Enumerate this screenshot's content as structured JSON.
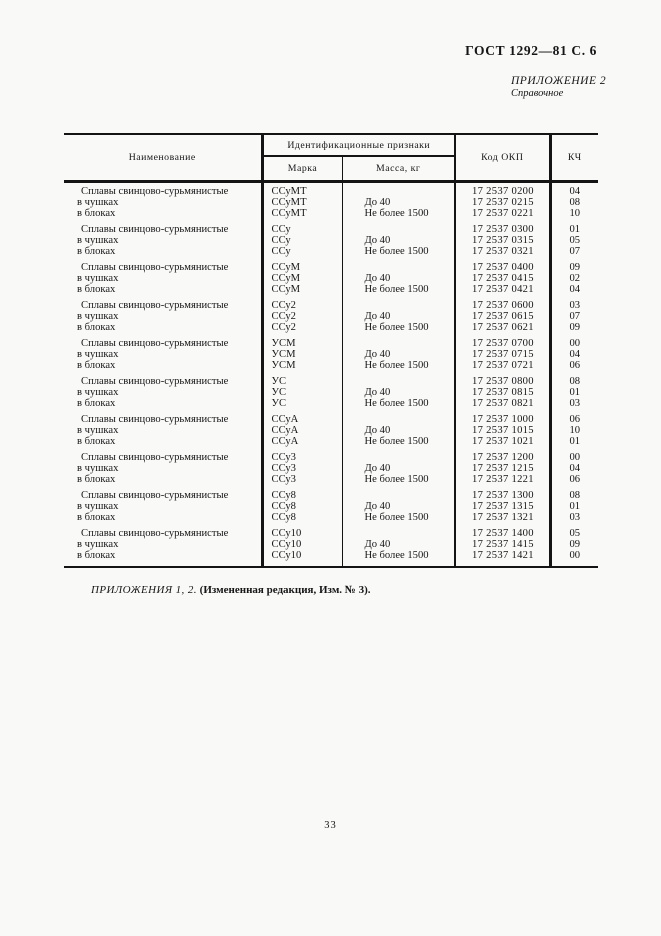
{
  "page": {
    "doc_ref": "ГОСТ 1292—81 С. 6",
    "appendix_label": "ПРИЛОЖЕНИЕ 2",
    "appendix_type": "Справочное",
    "footer_note_italic": "ПРИЛОЖЕНИЯ 1, 2.",
    "footer_note_bold": "(Измененная редакция, Изм. № 3).",
    "page_number": "33"
  },
  "table": {
    "col_name": "Наименование",
    "col_id_signs": "Идентификационные признаки",
    "col_mark": "Марка",
    "col_mass": "Масса, кг",
    "col_okp": "Код ОКП",
    "col_kch": "КЧ",
    "row_labels": {
      "main": "Сплавы свинцово-сурьмянистые",
      "ingots": "в чушках",
      "blocks": "в блоках",
      "mass_main": "",
      "mass_ingots": "До 40",
      "mass_blocks": "Не более 1500"
    },
    "groups": [
      {
        "mark": "ССуМТ",
        "codes": [
          "17 2537 0200",
          "17 2537 0215",
          "17 2537 0221"
        ],
        "kch": [
          "04",
          "08",
          "10"
        ]
      },
      {
        "mark": "ССу",
        "codes": [
          "17 2537 0300",
          "17 2537 0315",
          "17 2537 0321"
        ],
        "kch": [
          "01",
          "05",
          "07"
        ]
      },
      {
        "mark": "ССуМ",
        "codes": [
          "17 2537 0400",
          "17 2537 0415",
          "17 2537 0421"
        ],
        "kch": [
          "09",
          "02",
          "04"
        ]
      },
      {
        "mark": "ССу2",
        "codes": [
          "17 2537 0600",
          "17 2537 0615",
          "17 2537 0621"
        ],
        "kch": [
          "03",
          "07",
          "09"
        ]
      },
      {
        "mark": "УСМ",
        "codes": [
          "17 2537 0700",
          "17 2537 0715",
          "17 2537 0721"
        ],
        "kch": [
          "00",
          "04",
          "06"
        ]
      },
      {
        "mark": "УС",
        "codes": [
          "17 2537 0800",
          "17 2537 0815",
          "17 2537 0821"
        ],
        "kch": [
          "08",
          "01",
          "03"
        ]
      },
      {
        "mark": "ССуА",
        "codes": [
          "17 2537 1000",
          "17 2537 1015",
          "17 2537 1021"
        ],
        "kch": [
          "06",
          "10",
          "01"
        ]
      },
      {
        "mark": "ССу3",
        "codes": [
          "17 2537 1200",
          "17 2537 1215",
          "17 2537 1221"
        ],
        "kch": [
          "00",
          "04",
          "06"
        ]
      },
      {
        "mark": "ССу8",
        "codes": [
          "17 2537 1300",
          "17 2537 1315",
          "17 2537 1321"
        ],
        "kch": [
          "08",
          "01",
          "03"
        ]
      },
      {
        "mark": "ССу10",
        "codes": [
          "17 2537 1400",
          "17 2537 1415",
          "17 2537 1421"
        ],
        "kch": [
          "05",
          "09",
          "00"
        ]
      }
    ]
  }
}
